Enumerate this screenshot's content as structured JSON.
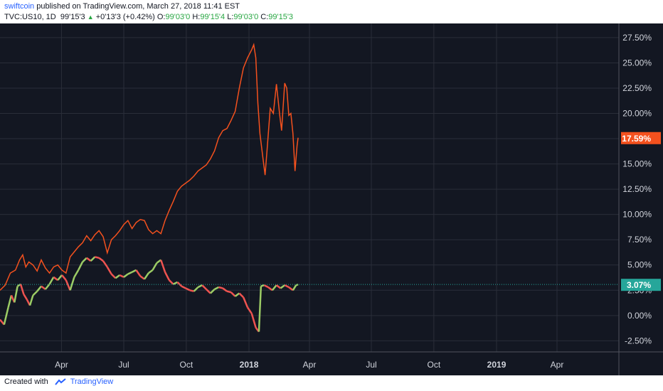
{
  "header": {
    "author": "swiftcoin",
    "published": "published on TradingView.com, March 27, 2018 11:41 EST",
    "symbol": "TVC:US10, 1D",
    "price": "99'15'3",
    "change": "+0'13'3 (+0.42%)",
    "o_label": "O:",
    "o_value": "99'03'0",
    "h_label": "H:",
    "h_value": "99'15'4",
    "l_label": "L:",
    "l_value": "99'03'0",
    "c_label": "C:",
    "c_value": "99'15'3"
  },
  "footer": {
    "created_with": "Created with",
    "brand": "TradingView"
  },
  "colors": {
    "background": "#131722",
    "grid": "#2a2e39",
    "orange_line": "#f4511e",
    "green_last": "#26a69a",
    "up": "#9ccc65",
    "down": "#ef5350"
  },
  "chart_data": {
    "type": "line",
    "yaxis": {
      "ticks": [
        27.5,
        25,
        22.5,
        20,
        17.5,
        15,
        12.5,
        10,
        7.5,
        5,
        2.5,
        0,
        -2.5
      ],
      "tick_labels": [
        "27.50%",
        "25.00%",
        "22.50%",
        "20.00%",
        "",
        "15.00%",
        "12.50%",
        "10.00%",
        "7.50%",
        "5.00%",
        "2.50%",
        "0.00%",
        "-2.50%"
      ],
      "ylim": [
        -3.6,
        28.9
      ]
    },
    "xaxis": {
      "ticks": [
        {
          "x": 3.18,
          "label": "Apr",
          "bold": false
        },
        {
          "x": 6.2,
          "label": "Jul",
          "bold": false
        },
        {
          "x": 9.23,
          "label": "Oct",
          "bold": false
        },
        {
          "x": 12.27,
          "label": "2018",
          "bold": true
        },
        {
          "x": 15.2,
          "label": "Apr",
          "bold": false
        },
        {
          "x": 18.2,
          "label": "Jul",
          "bold": false
        },
        {
          "x": 21.23,
          "label": "Oct",
          "bold": false
        },
        {
          "x": 24.27,
          "label": "2019",
          "bold": true
        },
        {
          "x": 27.2,
          "label": "Apr",
          "bold": false
        }
      ],
      "xlim": [
        0.2,
        30.2
      ]
    },
    "series": [
      {
        "line": "orange",
        "last_label": "17.59%",
        "points": [
          [
            0.2,
            2.5
          ],
          [
            0.45,
            3.0
          ],
          [
            0.7,
            4.2
          ],
          [
            0.95,
            4.5
          ],
          [
            1.15,
            5.5
          ],
          [
            1.3,
            6.0
          ],
          [
            1.45,
            4.8
          ],
          [
            1.6,
            5.3
          ],
          [
            1.8,
            5.0
          ],
          [
            2.0,
            4.4
          ],
          [
            2.2,
            5.5
          ],
          [
            2.4,
            4.7
          ],
          [
            2.6,
            4.2
          ],
          [
            2.8,
            4.8
          ],
          [
            3.0,
            5.0
          ],
          [
            3.2,
            4.5
          ],
          [
            3.4,
            4.2
          ],
          [
            3.6,
            5.8
          ],
          [
            3.8,
            6.3
          ],
          [
            4.0,
            6.8
          ],
          [
            4.2,
            7.2
          ],
          [
            4.4,
            7.9
          ],
          [
            4.6,
            7.4
          ],
          [
            4.8,
            8.0
          ],
          [
            5.0,
            8.4
          ],
          [
            5.2,
            7.8
          ],
          [
            5.4,
            6.2
          ],
          [
            5.6,
            7.5
          ],
          [
            5.8,
            7.9
          ],
          [
            6.0,
            8.4
          ],
          [
            6.2,
            9.0
          ],
          [
            6.4,
            9.4
          ],
          [
            6.6,
            8.6
          ],
          [
            6.8,
            9.2
          ],
          [
            7.0,
            9.5
          ],
          [
            7.2,
            9.4
          ],
          [
            7.4,
            8.5
          ],
          [
            7.6,
            8.1
          ],
          [
            7.8,
            8.4
          ],
          [
            8.0,
            8.1
          ],
          [
            8.2,
            9.4
          ],
          [
            8.4,
            10.4
          ],
          [
            8.6,
            11.3
          ],
          [
            8.8,
            12.3
          ],
          [
            9.0,
            12.8
          ],
          [
            9.2,
            13.1
          ],
          [
            9.4,
            13.4
          ],
          [
            9.6,
            13.8
          ],
          [
            9.8,
            14.3
          ],
          [
            10.0,
            14.6
          ],
          [
            10.2,
            14.9
          ],
          [
            10.4,
            15.5
          ],
          [
            10.6,
            16.3
          ],
          [
            10.8,
            17.6
          ],
          [
            11.0,
            18.3
          ],
          [
            11.2,
            18.5
          ],
          [
            11.4,
            19.3
          ],
          [
            11.6,
            20.2
          ],
          [
            11.8,
            22.5
          ],
          [
            12.0,
            24.5
          ],
          [
            12.2,
            25.5
          ],
          [
            12.4,
            26.3
          ],
          [
            12.5,
            26.8
          ],
          [
            12.6,
            25.5
          ],
          [
            12.7,
            21.0
          ],
          [
            12.8,
            18.0
          ],
          [
            12.95,
            15.5
          ],
          [
            13.05,
            13.9
          ],
          [
            13.15,
            16.5
          ],
          [
            13.3,
            20.5
          ],
          [
            13.45,
            20.0
          ],
          [
            13.6,
            22.9
          ],
          [
            13.75,
            20.0
          ],
          [
            13.85,
            18.3
          ],
          [
            14.0,
            23.0
          ],
          [
            14.1,
            22.5
          ],
          [
            14.2,
            19.8
          ],
          [
            14.3,
            20.0
          ],
          [
            14.4,
            18.0
          ],
          [
            14.5,
            14.3
          ],
          [
            14.6,
            16.8
          ],
          [
            14.65,
            17.59
          ]
        ]
      },
      {
        "line": "candles",
        "last_label": "3.07%",
        "points": [
          [
            0.2,
            -0.4
          ],
          [
            0.4,
            -0.9
          ],
          [
            0.6,
            0.8
          ],
          [
            0.75,
            2.0
          ],
          [
            0.9,
            1.3
          ],
          [
            1.05,
            2.9
          ],
          [
            1.2,
            3.1
          ],
          [
            1.35,
            2.1
          ],
          [
            1.5,
            1.6
          ],
          [
            1.65,
            1.0
          ],
          [
            1.8,
            2.0
          ],
          [
            2.0,
            2.4
          ],
          [
            2.2,
            2.9
          ],
          [
            2.4,
            2.6
          ],
          [
            2.6,
            3.1
          ],
          [
            2.8,
            3.8
          ],
          [
            3.0,
            3.5
          ],
          [
            3.2,
            4.0
          ],
          [
            3.4,
            3.5
          ],
          [
            3.6,
            2.5
          ],
          [
            3.8,
            3.8
          ],
          [
            4.0,
            4.5
          ],
          [
            4.2,
            5.3
          ],
          [
            4.4,
            5.7
          ],
          [
            4.6,
            5.4
          ],
          [
            4.8,
            5.8
          ],
          [
            5.0,
            5.7
          ],
          [
            5.2,
            5.4
          ],
          [
            5.4,
            4.8
          ],
          [
            5.6,
            4.1
          ],
          [
            5.8,
            3.7
          ],
          [
            6.0,
            4.0
          ],
          [
            6.2,
            3.8
          ],
          [
            6.4,
            4.1
          ],
          [
            6.6,
            4.3
          ],
          [
            6.8,
            4.5
          ],
          [
            7.0,
            3.9
          ],
          [
            7.2,
            3.6
          ],
          [
            7.4,
            4.2
          ],
          [
            7.6,
            4.5
          ],
          [
            7.8,
            5.2
          ],
          [
            8.0,
            5.5
          ],
          [
            8.2,
            4.3
          ],
          [
            8.4,
            3.5
          ],
          [
            8.6,
            3.1
          ],
          [
            8.8,
            3.3
          ],
          [
            9.0,
            2.9
          ],
          [
            9.2,
            2.7
          ],
          [
            9.4,
            2.5
          ],
          [
            9.6,
            2.4
          ],
          [
            9.8,
            2.8
          ],
          [
            10.0,
            3.0
          ],
          [
            10.2,
            2.6
          ],
          [
            10.4,
            2.2
          ],
          [
            10.6,
            2.6
          ],
          [
            10.8,
            2.8
          ],
          [
            11.0,
            2.7
          ],
          [
            11.2,
            2.4
          ],
          [
            11.4,
            2.3
          ],
          [
            11.6,
            1.9
          ],
          [
            11.8,
            2.2
          ],
          [
            12.0,
            1.8
          ],
          [
            12.2,
            0.8
          ],
          [
            12.4,
            0.2
          ],
          [
            12.6,
            -1.2
          ],
          [
            12.75,
            -1.6
          ],
          [
            12.85,
            2.9
          ],
          [
            13.0,
            3.0
          ],
          [
            13.2,
            2.8
          ],
          [
            13.4,
            2.5
          ],
          [
            13.6,
            3.0
          ],
          [
            13.8,
            2.7
          ],
          [
            14.0,
            3.0
          ],
          [
            14.2,
            2.8
          ],
          [
            14.4,
            2.5
          ],
          [
            14.55,
            3.0
          ],
          [
            14.65,
            3.07
          ]
        ]
      }
    ]
  }
}
